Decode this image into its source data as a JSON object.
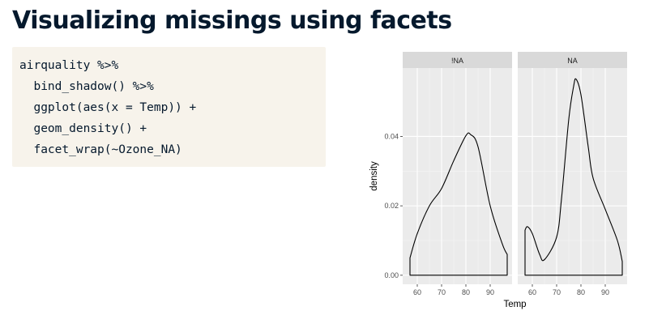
{
  "slide": {
    "title": "Visualizing missings using facets"
  },
  "code": {
    "lines": [
      "airquality %>%",
      "  bind_shadow() %>%",
      "  ggplot(aes(x = Temp)) +",
      "  geom_density() +",
      "  facet_wrap(~Ozone_NA)"
    ]
  },
  "chart_data": {
    "type": "area",
    "title": "",
    "xlabel": "Temp",
    "ylabel": "density",
    "xlim": [
      54,
      99
    ],
    "ylim": [
      -0.0026,
      0.0597
    ],
    "x_ticks": [
      60,
      70,
      80,
      90
    ],
    "y_ticks": [
      0.0,
      0.02,
      0.04
    ],
    "y_tick_labels": [
      "0.00",
      "0.02",
      "0.04"
    ],
    "grid": true,
    "legend": "none",
    "panels": [
      {
        "name": "!NA",
        "x": [
          57,
          60,
          65,
          70,
          75,
          80,
          82,
          85,
          90,
          95,
          97
        ],
        "y": [
          0.005,
          0.012,
          0.02,
          0.025,
          0.033,
          0.0402,
          0.0405,
          0.037,
          0.02,
          0.009,
          0.006
        ]
      },
      {
        "name": "NA",
        "x": [
          57,
          58,
          60,
          63,
          65,
          70,
          72,
          75,
          77,
          78,
          80,
          83,
          85,
          90,
          95,
          97
        ],
        "y": [
          0.013,
          0.014,
          0.012,
          0.006,
          0.0045,
          0.011,
          0.022,
          0.045,
          0.0545,
          0.0565,
          0.052,
          0.037,
          0.028,
          0.019,
          0.01,
          0.004
        ]
      }
    ]
  }
}
